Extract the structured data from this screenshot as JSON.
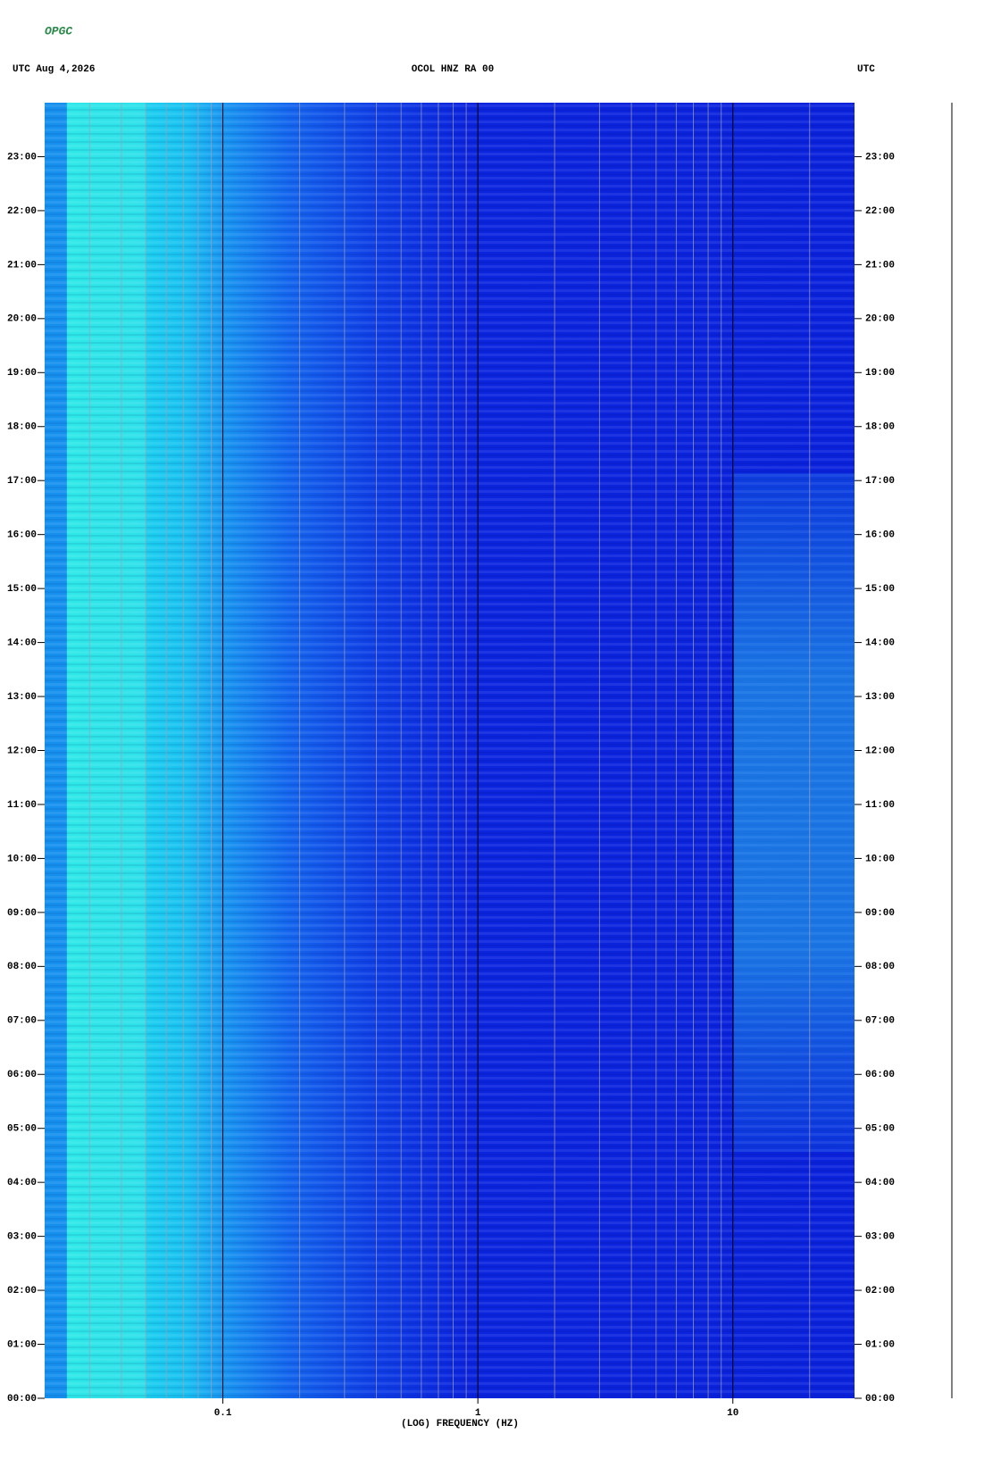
{
  "chart_data": {
    "type": "spectrogram",
    "logo": "OPGC",
    "title_left": "UTC  Aug 4,2026",
    "title": "OCOL HNZ RA 00",
    "title_right": "UTC",
    "xlabel": "(LOG) FREQUENCY (HZ)",
    "xscale": "log",
    "xlim": [
      0.02,
      30
    ],
    "xticks": [
      0.1,
      1,
      10
    ],
    "xminorticks": [
      0.03,
      0.04,
      0.05,
      0.06,
      0.07,
      0.08,
      0.09,
      0.2,
      0.3,
      0.4,
      0.5,
      0.6,
      0.7,
      0.8,
      0.9,
      2,
      3,
      4,
      5,
      6,
      7,
      8,
      9,
      20
    ],
    "ylim": [
      0,
      24
    ],
    "yticks": [
      {
        "value": 0,
        "label": "00:00"
      },
      {
        "value": 1,
        "label": "01:00"
      },
      {
        "value": 2,
        "label": "02:00"
      },
      {
        "value": 3,
        "label": "03:00"
      },
      {
        "value": 4,
        "label": "04:00"
      },
      {
        "value": 5,
        "label": "05:00"
      },
      {
        "value": 6,
        "label": "06:00"
      },
      {
        "value": 7,
        "label": "07:00"
      },
      {
        "value": 8,
        "label": "08:00"
      },
      {
        "value": 9,
        "label": "09:00"
      },
      {
        "value": 10,
        "label": "10:00"
      },
      {
        "value": 11,
        "label": "11:00"
      },
      {
        "value": 12,
        "label": "12:00"
      },
      {
        "value": 13,
        "label": "13:00"
      },
      {
        "value": 14,
        "label": "14:00"
      },
      {
        "value": 15,
        "label": "15:00"
      },
      {
        "value": 16,
        "label": "16:00"
      },
      {
        "value": 17,
        "label": "17:00"
      },
      {
        "value": 18,
        "label": "18:00"
      },
      {
        "value": 19,
        "label": "19:00"
      },
      {
        "value": 20,
        "label": "20:00"
      },
      {
        "value": 21,
        "label": "21:00"
      },
      {
        "value": 22,
        "label": "22:00"
      },
      {
        "value": 23,
        "label": "23:00"
      }
    ]
  }
}
